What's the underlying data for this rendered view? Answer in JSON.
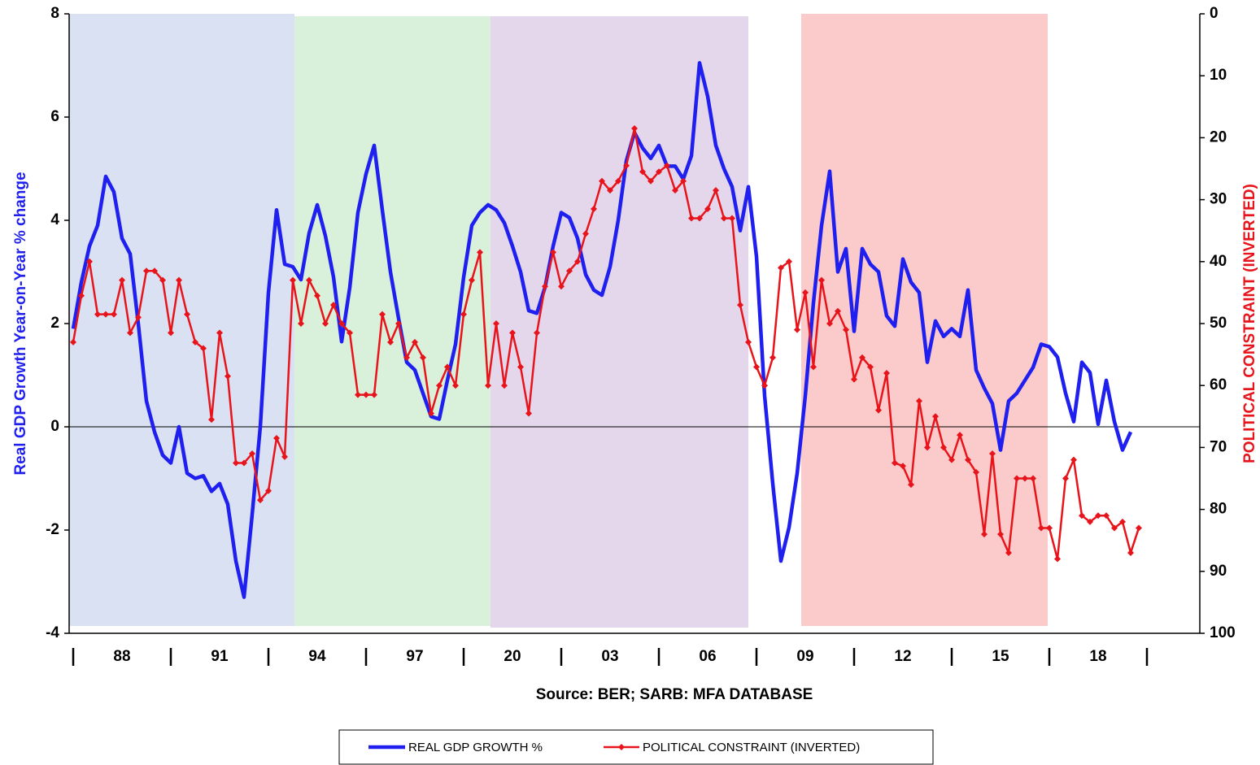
{
  "chart_data": {
    "type": "line",
    "source": "Source: BER; SARB: MFA DATABASE",
    "y_label": "Real GDP Growth Year-on-Year % change",
    "y2_label": "POLITICAL CONSTRAINT (INVERTED)",
    "categories": [
      null,
      null,
      null,
      null,
      null,
      null,
      "88",
      null,
      null,
      null,
      null,
      null,
      null,
      null,
      null,
      null,
      null,
      null,
      "91",
      null,
      null,
      null,
      null,
      null,
      null,
      null,
      null,
      null,
      null,
      null,
      "94",
      null,
      null,
      null,
      null,
      null,
      null,
      null,
      null,
      null,
      null,
      null,
      "97",
      null,
      null,
      null,
      null,
      null,
      null,
      null,
      null,
      null,
      null,
      null,
      "20",
      null,
      null,
      null,
      null,
      null,
      null,
      null,
      null,
      null,
      null,
      null,
      "03",
      null,
      null,
      null,
      null,
      null,
      null,
      null,
      null,
      null,
      null,
      null,
      "06",
      null,
      null,
      null,
      null,
      null,
      null,
      null,
      null,
      null,
      null,
      null,
      "09",
      null,
      null,
      null,
      null,
      null,
      null,
      null,
      null,
      null,
      null,
      null,
      "12",
      null,
      null,
      null,
      null,
      null,
      null,
      null,
      null,
      null,
      null,
      null,
      "15",
      null,
      null,
      null,
      null,
      null,
      null,
      null,
      null,
      null,
      null,
      null,
      "18",
      null,
      null,
      null,
      null,
      null
    ],
    "series": [
      {
        "name": "REAL GDP GROWTH %",
        "color": "#1f1ff0",
        "axis": "y",
        "values": [
          1.9,
          2.8,
          3.5,
          3.9,
          4.85,
          4.55,
          3.65,
          3.35,
          2.0,
          0.5,
          -0.1,
          -0.55,
          -0.7,
          0.0,
          -0.9,
          -1.0,
          -0.95,
          -1.25,
          -1.1,
          -1.5,
          -2.6,
          -3.3,
          -1.7,
          0.0,
          2.6,
          4.2,
          3.15,
          3.1,
          2.85,
          3.75,
          4.3,
          3.7,
          2.9,
          1.65,
          2.7,
          4.15,
          4.9,
          5.45,
          4.2,
          3.0,
          2.1,
          1.25,
          1.1,
          0.65,
          0.2,
          0.15,
          0.9,
          1.6,
          2.9,
          3.9,
          4.15,
          4.3,
          4.2,
          3.95,
          3.5,
          3.0,
          2.25,
          2.2,
          2.7,
          3.5,
          4.15,
          4.05,
          3.65,
          2.95,
          2.65,
          2.55,
          3.1,
          4.0,
          5.15,
          5.7,
          5.4,
          5.2,
          5.45,
          5.05,
          5.05,
          4.8,
          5.25,
          7.05,
          6.4,
          5.45,
          5.0,
          4.65,
          3.8,
          4.65,
          3.3,
          0.6,
          -1.1,
          -2.6,
          -1.95,
          -0.9,
          0.6,
          2.4,
          3.9,
          4.95,
          3.0,
          3.45,
          1.85,
          3.45,
          3.15,
          3.0,
          2.15,
          1.95,
          3.25,
          2.8,
          2.6,
          1.25,
          2.05,
          1.75,
          1.9,
          1.75,
          2.65,
          1.1,
          0.75,
          0.45,
          -0.45,
          0.5,
          0.65,
          0.9,
          1.15,
          1.6,
          1.55,
          1.35,
          0.65,
          0.1,
          1.25,
          1.05,
          0.05,
          0.9,
          0.1,
          -0.45,
          -0.1,
          null
        ]
      },
      {
        "name": "POLITICAL CONSTRAINT (INVERTED)",
        "color": "#e8141b",
        "axis": "y2",
        "values": [
          53,
          45.5,
          40,
          48.5,
          48.5,
          48.5,
          43,
          51.5,
          49,
          41.5,
          41.5,
          43,
          51.5,
          43,
          48.5,
          53,
          54,
          65.5,
          51.5,
          58.5,
          72.5,
          72.5,
          71,
          78.5,
          77,
          68.5,
          71.5,
          43,
          50,
          43,
          45.5,
          50,
          47,
          50,
          51.5,
          61.5,
          61.5,
          61.5,
          48.5,
          53,
          50,
          55.5,
          53,
          55.5,
          64.5,
          60,
          57,
          60,
          48.5,
          43,
          38.5,
          60,
          50,
          60,
          51.5,
          57,
          64.5,
          51.5,
          44,
          38.5,
          44,
          41.5,
          40,
          35.5,
          31.5,
          27,
          28.5,
          27,
          24.5,
          18.5,
          25.5,
          27,
          25.5,
          24.5,
          28.5,
          27,
          33,
          33,
          31.5,
          28.5,
          33,
          33,
          47,
          53,
          57,
          60,
          55.5,
          41,
          40,
          51,
          45,
          57,
          43,
          50,
          48,
          51,
          59,
          55.5,
          57,
          64,
          58,
          72.5,
          73,
          76,
          62.5,
          70,
          65,
          70,
          72,
          68,
          72,
          74,
          84,
          71,
          84,
          87,
          75,
          75,
          75,
          83,
          83,
          88,
          75,
          72,
          81,
          82,
          81,
          81,
          83,
          82,
          87,
          83
        ]
      }
    ],
    "ylim": [
      -4,
      8
    ],
    "yticks": [
      -4,
      -2,
      0,
      2,
      4,
      6,
      8
    ],
    "y2lim": [
      100,
      0
    ],
    "y2ticks": [
      0,
      10,
      20,
      30,
      40,
      50,
      60,
      70,
      80,
      90,
      100
    ]
  }
}
